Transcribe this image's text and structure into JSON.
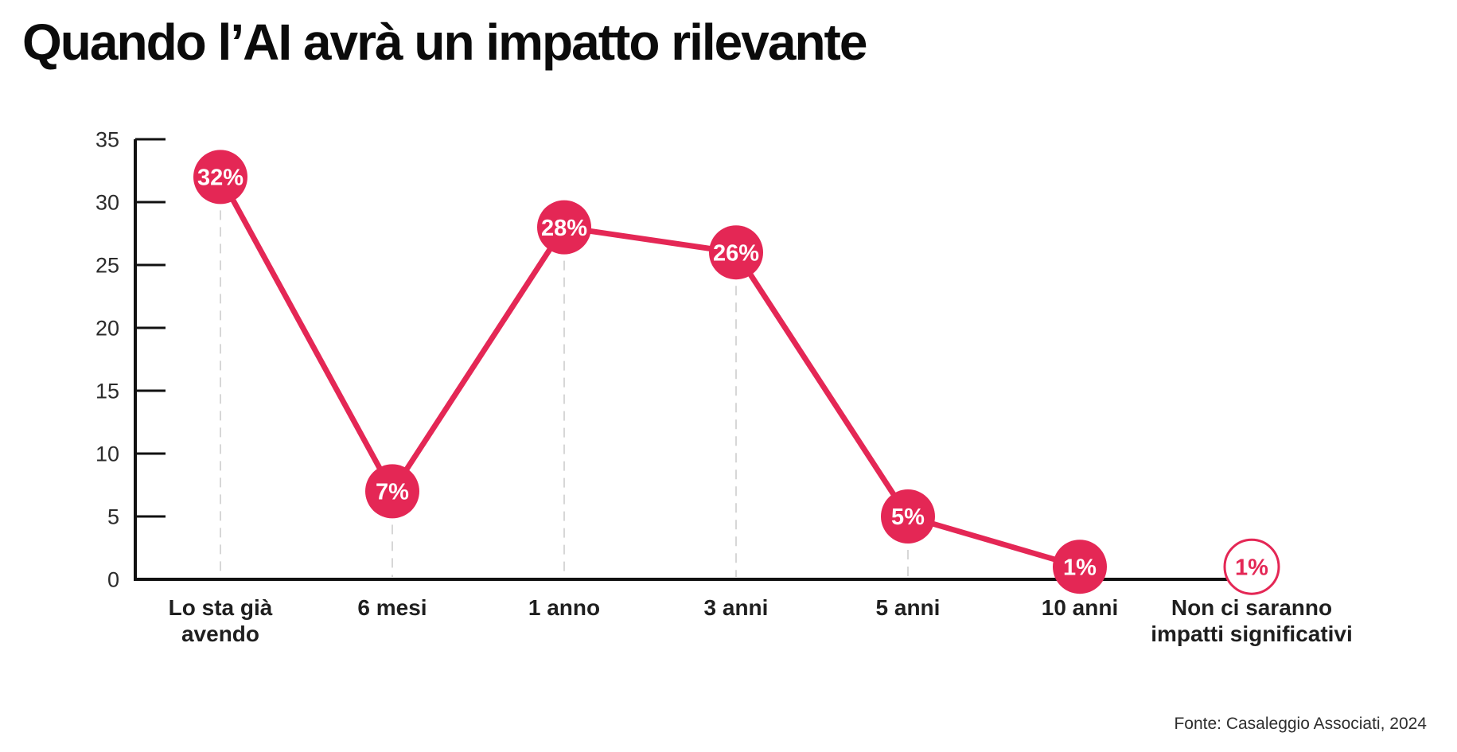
{
  "title": "Quando l’AI avrà un impatto rilevante",
  "source": "Fonte: Casaleggio Associati, 2024",
  "chart_data": {
    "type": "line",
    "title": "Quando l’AI avrà un impatto rilevante",
    "categories": [
      "Lo sta già\navendo",
      "6 mesi",
      "1 anno",
      "3 anni",
      "5 anni",
      "10 anni",
      "Non ci saranno\nimpatti significativi"
    ],
    "values": [
      32,
      7,
      28,
      26,
      5,
      1,
      1
    ],
    "point_labels": [
      "32%",
      "7%",
      "28%",
      "26%",
      "5%",
      "1%",
      "1%"
    ],
    "droplines": [
      true,
      true,
      true,
      true,
      true,
      false,
      false
    ],
    "connected_points": 6,
    "outlined_last_point": true,
    "xlabel": "",
    "ylabel": "",
    "ylim": [
      0,
      35
    ],
    "yticks": [
      0,
      5,
      10,
      15,
      20,
      25,
      30,
      35
    ],
    "grid": "dashed vertical droplines under points",
    "legend": false,
    "colors": {
      "marker_fill": "#E42755",
      "marker_text": "#FFFFFF",
      "line": "#E42755",
      "outlined_marker_fill": "#FFFFFF",
      "outlined_marker_stroke": "#E42755",
      "outlined_marker_text": "#E42755",
      "axis": "#111111",
      "tick_label": "#2b2b2b",
      "category_label": "#1f1f1f",
      "dropline": "#d7d7d7"
    }
  }
}
